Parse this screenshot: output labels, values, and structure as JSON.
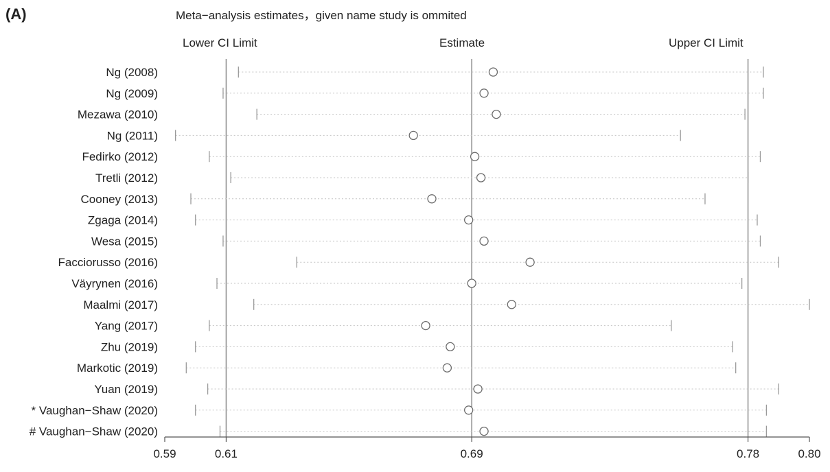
{
  "panel_label": "(A)",
  "title": "Meta−analysis estimates，given name study is ommited",
  "headers": {
    "lower": "Lower CI Limit",
    "estimate": "Estimate",
    "upper": "Upper CI Limit"
  },
  "chart_data": {
    "type": "scatter",
    "subtype": "leave-one-out forest plot",
    "title": "Meta−analysis estimates，given name study is ommited",
    "xlabel": "",
    "ylabel": "",
    "xlim": [
      0.59,
      0.8
    ],
    "x_ticks": [
      0.59,
      0.61,
      0.69,
      0.78,
      0.8
    ],
    "x_tick_labels": [
      "0.59",
      "0.61",
      "0.69",
      "0.78",
      "0.80"
    ],
    "reference_lines": {
      "lower_ci_limit": 0.61,
      "estimate": 0.69,
      "upper_ci_limit": 0.78
    },
    "grid": false,
    "studies": [
      {
        "label": "Ng (2008)",
        "estimate": 0.697,
        "lower": 0.614,
        "upper": 0.785
      },
      {
        "label": "Ng (2009)",
        "estimate": 0.694,
        "lower": 0.609,
        "upper": 0.785
      },
      {
        "label": "Mezawa (2010)",
        "estimate": 0.698,
        "lower": 0.62,
        "upper": 0.779
      },
      {
        "label": "Ng (2011)",
        "estimate": 0.671,
        "lower": 0.5935,
        "upper": 0.758
      },
      {
        "label": "Fedirko (2012)",
        "estimate": 0.691,
        "lower": 0.6045,
        "upper": 0.784
      },
      {
        "label": "Tretli (2012)",
        "estimate": 0.693,
        "lower": 0.6115,
        "upper": 0.78
      },
      {
        "label": "Cooney (2013)",
        "estimate": 0.677,
        "lower": 0.5985,
        "upper": 0.766
      },
      {
        "label": "Zgaga (2014)",
        "estimate": 0.689,
        "lower": 0.6,
        "upper": 0.783
      },
      {
        "label": "Wesa (2015)",
        "estimate": 0.694,
        "lower": 0.609,
        "upper": 0.784
      },
      {
        "label": "Facciorusso (2016)",
        "estimate": 0.709,
        "lower": 0.633,
        "upper": 0.79
      },
      {
        "label": "Väyrynen (2016)",
        "estimate": 0.69,
        "lower": 0.607,
        "upper": 0.778
      },
      {
        "label": "Maalmi (2017)",
        "estimate": 0.703,
        "lower": 0.619,
        "upper": 0.8
      },
      {
        "label": "Yang (2017)",
        "estimate": 0.675,
        "lower": 0.6045,
        "upper": 0.755
      },
      {
        "label": "Zhu (2019)",
        "estimate": 0.683,
        "lower": 0.6,
        "upper": 0.775
      },
      {
        "label": "Markotic (2019)",
        "estimate": 0.682,
        "lower": 0.597,
        "upper": 0.776
      },
      {
        "label": "Yuan (2019)",
        "estimate": 0.692,
        "lower": 0.604,
        "upper": 0.79
      },
      {
        "label": "* Vaughan−Shaw (2020)",
        "estimate": 0.689,
        "lower": 0.6,
        "upper": 0.786
      },
      {
        "label": "# Vaughan−Shaw (2020)",
        "estimate": 0.694,
        "lower": 0.608,
        "upper": 0.786
      }
    ]
  }
}
